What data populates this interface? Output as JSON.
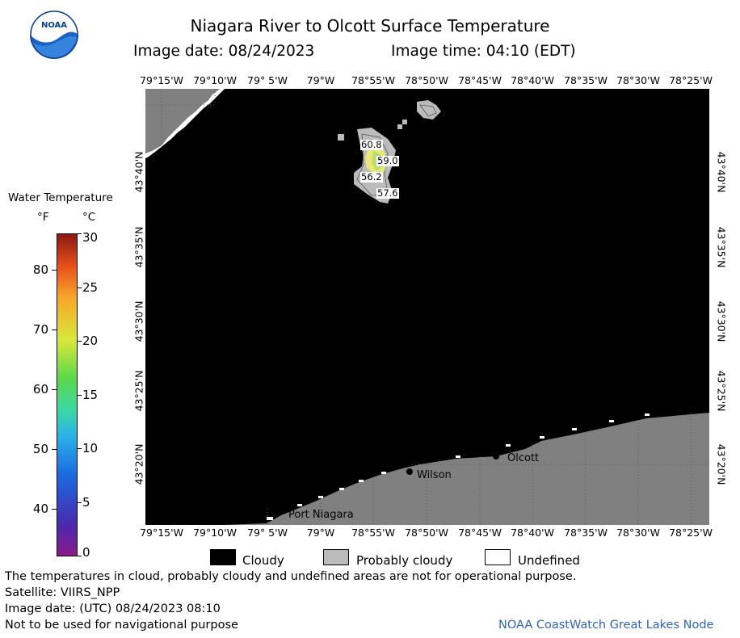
{
  "title": "Niagara River to Olcott Surface Temperature",
  "subtitle_date": "Image date: 08/24/2023",
  "subtitle_time": "Image time: 04:10 (EDT)",
  "logo_text": "NOAA",
  "lon_labels": [
    "79°15'W",
    "79°10'W",
    "79° 5'W",
    "79°W",
    "78°55'W",
    "78°50'W",
    "78°45'W",
    "78°40'W",
    "78°35'W",
    "78°30'W",
    "78°25'W"
  ],
  "lat_labels": [
    "43°40'N",
    "43°35'N",
    "43°30'N",
    "43°25'N",
    "43°20'N"
  ],
  "colorbar": {
    "title": "Water Temperature",
    "unit_f": "°F",
    "unit_c": "°C",
    "f_ticks": [
      "80",
      "70",
      "60",
      "50",
      "40"
    ],
    "c_ticks": [
      "30",
      "25",
      "20",
      "15",
      "10",
      "5",
      "0"
    ]
  },
  "temps": [
    "60.8",
    "59.0",
    "56.2",
    "57.6"
  ],
  "places": {
    "olcott": "Olcott",
    "wilson": "Wilson",
    "port_niagara": "Port Niagara"
  },
  "legend": {
    "cloudy": "Cloudy",
    "probably_cloudy": "Probably cloudy",
    "undefined": "Undefined"
  },
  "colors": {
    "cloudy": "#000000",
    "land": "#808080",
    "probably_cloudy": "#bbbbbb",
    "undefined": "#ffffff",
    "credit": "#2c64b4"
  },
  "footer": {
    "line1": "The temperatures in cloud, probably cloudy and undefined areas are not for operational purpose.",
    "line2": "Satellite: VIIRS_NPP",
    "line3": "Image date: (UTC) 08/24/2023  08:10",
    "line4": "Not to be used for navigational purpose",
    "credit": "NOAA CoastWatch Great Lakes Node"
  }
}
